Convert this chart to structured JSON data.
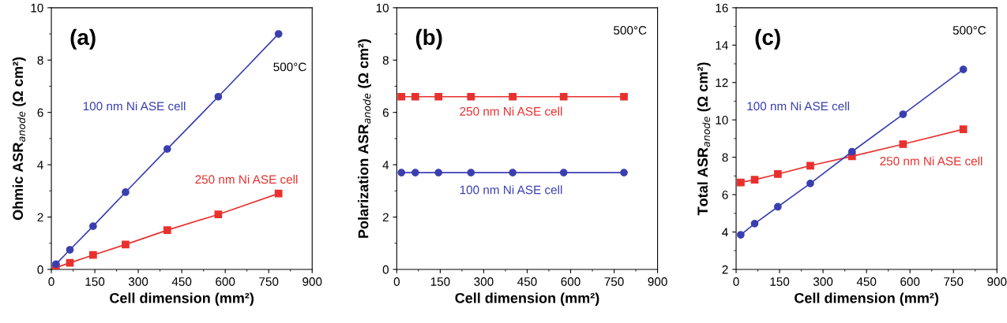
{
  "chart_data": [
    {
      "type": "line",
      "xlabel": "Cell dimension (mm²)",
      "ylabel": "Ohmic ASR$_{anode}$ (Ω cm²)",
      "x": [
        16,
        64,
        144,
        256,
        400,
        576,
        784
      ],
      "xlim": [
        0,
        900
      ],
      "xticks": [
        0,
        150,
        300,
        450,
        600,
        750,
        900
      ],
      "ylim": [
        0,
        10
      ],
      "yticks": [
        0,
        2,
        4,
        6,
        8,
        10
      ],
      "grid": false,
      "legend": false,
      "annotations": [
        "(a)",
        "500°C"
      ],
      "series": [
        {
          "name": "100 nm Ni ASE cell",
          "color": "#3a3fb0",
          "marker": "circle",
          "values": [
            0.2,
            0.75,
            1.65,
            2.95,
            4.6,
            6.6,
            9.0
          ]
        },
        {
          "name": "250 nm Ni ASE cell",
          "color": "#e8312f",
          "marker": "square",
          "values": [
            0.07,
            0.25,
            0.55,
            0.95,
            1.5,
            2.1,
            2.9
          ]
        }
      ]
    },
    {
      "type": "line",
      "xlabel": "Cell dimension (mm²)",
      "ylabel": "Polarization ASR$_{anode}$ (Ω cm²)",
      "x": [
        16,
        64,
        144,
        256,
        400,
        576,
        784
      ],
      "xlim": [
        0,
        900
      ],
      "xticks": [
        0,
        150,
        300,
        450,
        600,
        750,
        900
      ],
      "ylim": [
        0,
        10
      ],
      "yticks": [
        0,
        2,
        4,
        6,
        8,
        10
      ],
      "grid": false,
      "legend": false,
      "annotations": [
        "(b)",
        "500°C"
      ],
      "series": [
        {
          "name": "250 nm Ni ASE cell",
          "color": "#e8312f",
          "marker": "square",
          "values": [
            6.6,
            6.6,
            6.6,
            6.6,
            6.6,
            6.6,
            6.6
          ]
        },
        {
          "name": "100 nm Ni ASE cell",
          "color": "#3a3fb0",
          "marker": "circle",
          "values": [
            3.7,
            3.7,
            3.7,
            3.7,
            3.7,
            3.7,
            3.7
          ]
        }
      ]
    },
    {
      "type": "line",
      "xlabel": "Cell dimension (mm²)",
      "ylabel": "Total ASR$_{anode}$ (Ω cm²)",
      "x": [
        16,
        64,
        144,
        256,
        400,
        576,
        784
      ],
      "xlim": [
        0,
        900
      ],
      "xticks": [
        0,
        150,
        300,
        450,
        600,
        750,
        900
      ],
      "ylim": [
        2,
        16
      ],
      "yticks": [
        2,
        4,
        6,
        8,
        10,
        12,
        14,
        16
      ],
      "grid": false,
      "legend": false,
      "annotations": [
        "(c)",
        "500°C"
      ],
      "series": [
        {
          "name": "100 nm Ni ASE cell",
          "color": "#3a3fb0",
          "marker": "circle",
          "values": [
            3.85,
            4.45,
            5.35,
            6.6,
            8.3,
            10.3,
            12.7
          ]
        },
        {
          "name": "250 nm Ni ASE cell",
          "color": "#e8312f",
          "marker": "square",
          "values": [
            6.65,
            6.8,
            7.1,
            7.55,
            8.05,
            8.7,
            9.5
          ]
        }
      ]
    }
  ]
}
